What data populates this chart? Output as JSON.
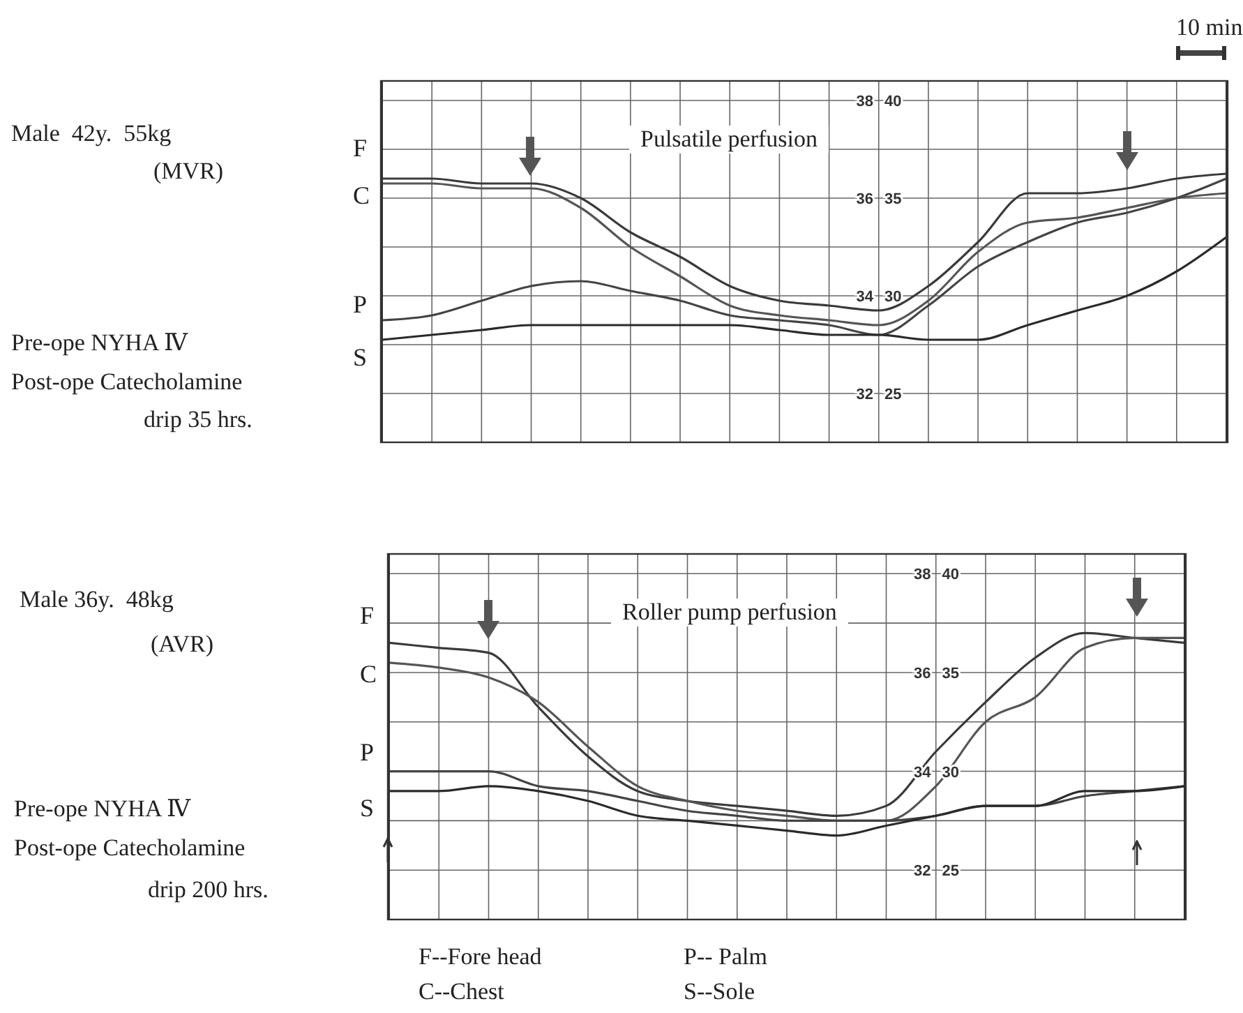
{
  "chart_data": [
    {
      "type": "line",
      "title": "Pulsatile perfusion",
      "categories": [
        null,
        null,
        null,
        null,
        null,
        null,
        null,
        null,
        null,
        null,
        null,
        null,
        null,
        null,
        null,
        null,
        null,
        null
      ],
      "series": [
        {
          "name": "F",
          "color": "#3a3a3a",
          "values": [
            36.4,
            36.4,
            36.3,
            36.3,
            36.0,
            35.3,
            34.8,
            34.2,
            33.9,
            33.8,
            33.7,
            34.2,
            35.1,
            36.1,
            36.1,
            36.2,
            36.4,
            36.5
          ]
        },
        {
          "name": "C",
          "color": "#555555",
          "values": [
            36.3,
            36.3,
            36.2,
            36.2,
            35.8,
            35.0,
            34.4,
            33.8,
            33.6,
            33.5,
            33.4,
            33.9,
            34.9,
            35.5,
            35.6,
            35.8,
            36.0,
            36.1
          ]
        },
        {
          "name": "P",
          "color": "#444444",
          "values": [
            33.5,
            33.6,
            33.9,
            34.2,
            34.3,
            34.1,
            33.9,
            33.6,
            33.5,
            33.4,
            33.2,
            33.8,
            34.6,
            35.1,
            35.5,
            35.7,
            36.0,
            36.4
          ]
        },
        {
          "name": "S",
          "color": "#2a2a2a",
          "values": [
            33.1,
            33.2,
            33.3,
            33.4,
            33.4,
            33.4,
            33.4,
            33.4,
            33.3,
            33.2,
            33.2,
            33.1,
            33.1,
            33.4,
            33.7,
            34.0,
            34.5,
            35.2
          ]
        }
      ],
      "ylim": [
        31,
        38.4
      ],
      "yticks": [
        38,
        {
          "value": 37,
          "label": null
        },
        36,
        {
          "value": 35,
          "label": null
        },
        34,
        {
          "value": 33,
          "label": null
        },
        32
      ],
      "y2lim": [
        22.5,
        41
      ],
      "y2ticks": [
        40,
        35,
        30,
        25
      ],
      "grid": true,
      "annotations": [
        "10 min",
        "Male  42y.  55kg",
        "(MVR)",
        "Pre-ope NYHA Ⅳ",
        "Post-ope Catecholamine",
        "drip 35 hrs."
      ]
    },
    {
      "type": "line",
      "title": "Roller pump perfusion",
      "categories": [
        null,
        null,
        null,
        null,
        null,
        null,
        null,
        null,
        null,
        null,
        null,
        null,
        null,
        null,
        null,
        null,
        null
      ],
      "series": [
        {
          "name": "F",
          "color": "#3a3a3a",
          "values": [
            36.6,
            36.5,
            36.4,
            35.3,
            34.3,
            33.6,
            33.4,
            33.3,
            33.2,
            33.1,
            33.3,
            34.4,
            35.4,
            36.3,
            36.8,
            36.7,
            36.6
          ]
        },
        {
          "name": "C",
          "color": "#555555",
          "values": [
            36.2,
            36.1,
            35.9,
            35.4,
            34.5,
            33.7,
            33.4,
            33.2,
            33.1,
            33.0,
            33.0,
            33.7,
            35.0,
            35.5,
            36.5,
            36.7,
            36.7
          ]
        },
        {
          "name": "P",
          "color": "#444444",
          "values": [
            34.0,
            34.0,
            34.0,
            33.7,
            33.6,
            33.4,
            33.2,
            33.1,
            33.0,
            33.0,
            33.0,
            33.1,
            33.3,
            33.3,
            33.5,
            33.6,
            33.7
          ]
        },
        {
          "name": "S",
          "color": "#2a2a2a",
          "values": [
            33.6,
            33.6,
            33.7,
            33.6,
            33.4,
            33.1,
            33.0,
            32.9,
            32.8,
            32.7,
            32.9,
            33.1,
            33.3,
            33.3,
            33.6,
            33.6,
            33.7
          ]
        }
      ],
      "ylim": [
        31,
        38.4
      ],
      "yticks": [
        38,
        {
          "value": 37,
          "label": null
        },
        36,
        {
          "value": 35,
          "label": null
        },
        34,
        {
          "value": 33,
          "label": null
        },
        32
      ],
      "y2lim": [
        22.5,
        41
      ],
      "y2ticks": [
        40,
        35,
        30,
        25
      ],
      "grid": true,
      "annotations": [
        "Male 36y.  48kg",
        "(AVR)",
        "Pre-ope NYHA Ⅳ",
        "Post-ope Catecholamine",
        "drip 200 hrs.",
        "F--Fore head",
        "C--Chest",
        "P-- Palm",
        "S--Sole"
      ]
    }
  ]
}
